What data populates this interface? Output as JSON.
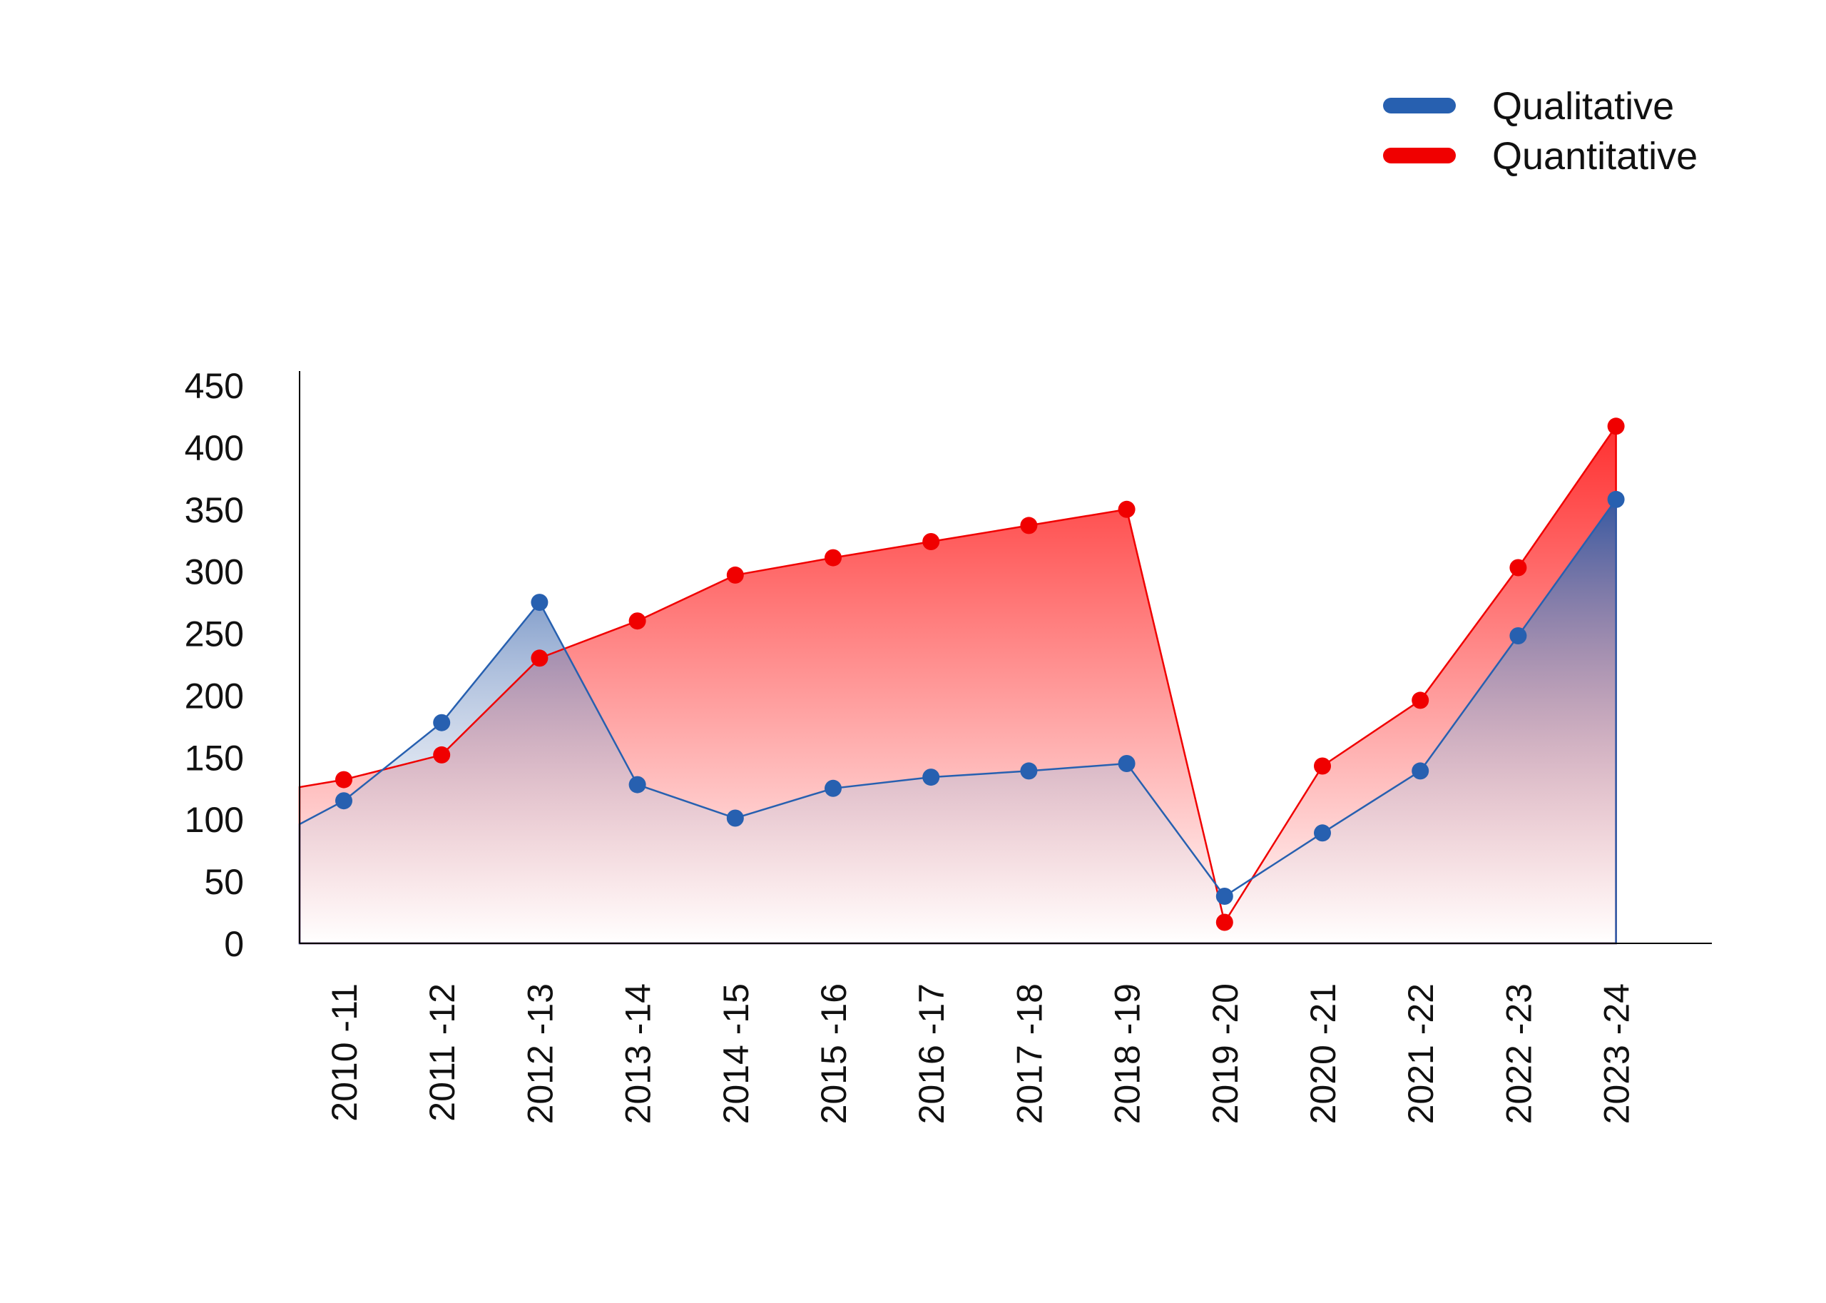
{
  "chart_data": {
    "type": "area",
    "title": "",
    "xlabel": "",
    "ylabel": "",
    "categories": [
      "2010 -11",
      "2011 -12",
      "2012 -13",
      "2013 -14",
      "2014 -15",
      "2015 -16",
      "2016 -17",
      "2017 -18",
      "2018 -19",
      "2019 -20",
      "2020 -21",
      "2021 -22",
      "2022 -23",
      "2023 -24"
    ],
    "series": [
      {
        "name": "Qualitative",
        "color": "#2760b0",
        "values": [
          115,
          178,
          275,
          128,
          101,
          125,
          134,
          139,
          145,
          38,
          89,
          139,
          248,
          358
        ]
      },
      {
        "name": "Quantitative",
        "color": "#f00000",
        "values": [
          132,
          152,
          230,
          260,
          297,
          311,
          324,
          337,
          350,
          17,
          143,
          196,
          303,
          417
        ]
      }
    ],
    "ylim": [
      0,
      450
    ],
    "yticks": [
      "0",
      "50",
      "100",
      "150",
      "200",
      "250",
      "300",
      "350",
      "400",
      "450"
    ],
    "grid": false,
    "legend_position": "top-right",
    "markers": true
  }
}
